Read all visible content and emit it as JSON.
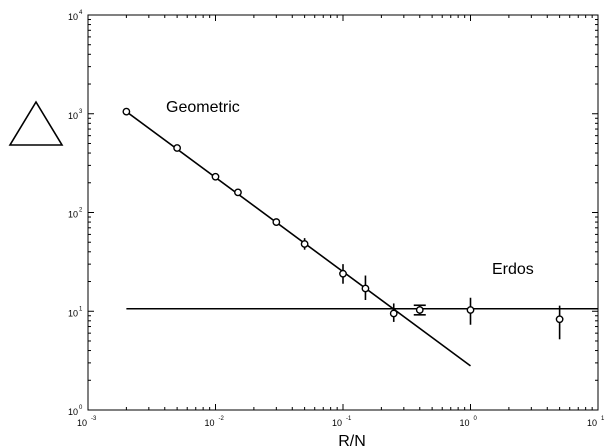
{
  "chart_data": {
    "type": "scatter",
    "xscale": "log",
    "yscale": "log",
    "xlim": [
      0.001,
      10
    ],
    "ylim": [
      1,
      10000
    ],
    "xlabel": "R/N",
    "ylabel_symbol": "triangle",
    "grid": false,
    "x_ticks": [
      {
        "base": "10",
        "exp": "-3",
        "value": 0.001
      },
      {
        "base": "10",
        "exp": "-2",
        "value": 0.01
      },
      {
        "base": "10",
        "exp": "-1",
        "value": 0.1
      },
      {
        "base": "10",
        "exp": "0",
        "value": 1
      },
      {
        "base": "10",
        "exp": "1",
        "value": 10
      }
    ],
    "y_ticks": [
      {
        "base": "10",
        "exp": "0",
        "value": 1
      },
      {
        "base": "10",
        "exp": "1",
        "value": 10
      },
      {
        "base": "10",
        "exp": "2",
        "value": 100
      },
      {
        "base": "10",
        "exp": "3",
        "value": 1000
      },
      {
        "base": "10",
        "exp": "4",
        "value": 10000
      }
    ],
    "series": [
      {
        "name": "Geometric",
        "label": "Geometric",
        "points": [
          {
            "x": 0.002,
            "y": 1050
          },
          {
            "x": 0.005,
            "y": 450
          },
          {
            "x": 0.01,
            "y": 230
          },
          {
            "x": 0.015,
            "y": 160
          },
          {
            "x": 0.03,
            "y": 80
          },
          {
            "x": 0.05,
            "y": 48,
            "ylo": 42,
            "yhi": 55
          },
          {
            "x": 0.1,
            "y": 24,
            "ylo": 19,
            "yhi": 30
          },
          {
            "x": 0.15,
            "y": 17,
            "ylo": 13,
            "yhi": 23
          },
          {
            "x": 0.25,
            "y": 9.5,
            "ylo": 7.8,
            "yhi": 12
          }
        ],
        "fit_line": {
          "x": [
            0.002,
            1
          ],
          "y": [
            1050,
            2.8
          ]
        }
      },
      {
        "name": "Erdos",
        "label": "Erdos",
        "points": [
          {
            "x": 0.4,
            "y": 10.3,
            "ylo": 9.2,
            "yhi": 11.5,
            "capped": true
          },
          {
            "x": 1,
            "y": 10.3,
            "ylo": 7.3,
            "yhi": 13.7
          },
          {
            "x": 5,
            "y": 8.3,
            "ylo": 5.2,
            "yhi": 11.4
          }
        ],
        "fit_line": {
          "x": [
            0.002,
            10
          ],
          "y": [
            10.6,
            10.6
          ]
        }
      }
    ]
  }
}
